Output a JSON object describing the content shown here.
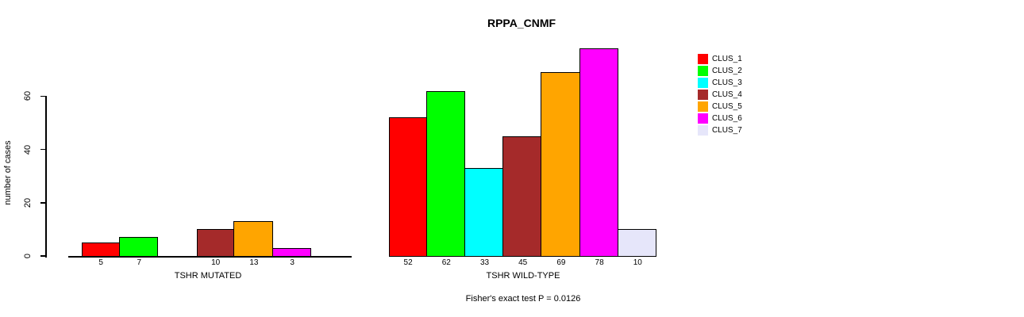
{
  "chart_data": {
    "type": "bar",
    "title": "RPPA_CNMF",
    "ylabel": "number of cases",
    "ylim": [
      0,
      80
    ],
    "yticks": [
      0,
      20,
      40,
      60
    ],
    "grid": false,
    "legend_position": "right-outside",
    "categories": [
      "CLUS_1",
      "CLUS_2",
      "CLUS_3",
      "CLUS_4",
      "CLUS_5",
      "CLUS_6",
      "CLUS_7"
    ],
    "colors": [
      "#ff0000",
      "#00ff00",
      "#00ffff",
      "#a52a2a",
      "#ffa500",
      "#ff00ff",
      "#e6e6fa"
    ],
    "groups": [
      {
        "label": "TSHR MUTATED",
        "values": [
          5,
          7,
          0,
          10,
          13,
          3,
          0
        ]
      },
      {
        "label": "TSHR WILD-TYPE",
        "values": [
          52,
          62,
          33,
          45,
          69,
          78,
          10
        ]
      }
    ],
    "annotation": "Fisher's exact test P = 0.0126"
  }
}
